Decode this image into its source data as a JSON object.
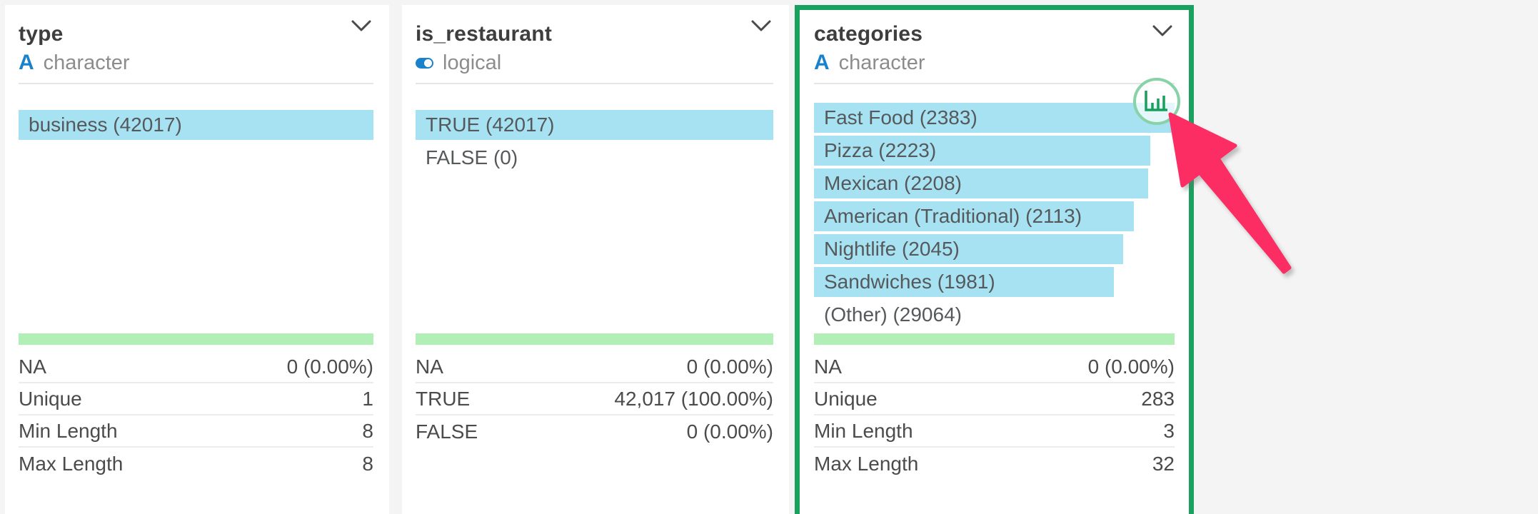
{
  "colors": {
    "bar_blue": "#A6E2F2",
    "summary_green": "#B2EFB6",
    "selected_green": "#1BA15F",
    "type_blue": "#1A82CB",
    "circle_border_green": "#87D2A6",
    "chart_icon_green": "#1A9E5C",
    "arrow_pink": "#FB2D62"
  },
  "cards": [
    {
      "title": "type",
      "type_kind": "character",
      "type_icon_glyph": "A",
      "selected": false,
      "bar_max": 42017,
      "bars": [
        {
          "label": "business (42017)",
          "value": 42017,
          "bar": true
        }
      ],
      "stats": [
        {
          "label": "NA",
          "value": "0 (0.00%)"
        },
        {
          "label": "Unique",
          "value": "1"
        },
        {
          "label": "Min Length",
          "value": "8"
        },
        {
          "label": "Max Length",
          "value": "8"
        }
      ]
    },
    {
      "title": "is_restaurant",
      "type_kind": "logical",
      "type_icon_glyph": "",
      "selected": false,
      "bar_max": 42017,
      "bars": [
        {
          "label": "TRUE (42017)",
          "value": 42017,
          "bar": true
        },
        {
          "label": "FALSE (0)",
          "value": 0,
          "bar": false
        }
      ],
      "stats": [
        {
          "label": "NA",
          "value": "0 (0.00%)"
        },
        {
          "label": "TRUE",
          "value": "42,017 (100.00%)"
        },
        {
          "label": "FALSE",
          "value": "0 (0.00%)"
        }
      ]
    },
    {
      "title": "categories",
      "type_kind": "character",
      "type_icon_glyph": "A",
      "selected": true,
      "bar_max": 2383,
      "bars": [
        {
          "label": "Fast Food (2383)",
          "value": 2383,
          "bar": true
        },
        {
          "label": "Pizza (2223)",
          "value": 2223,
          "bar": true
        },
        {
          "label": "Mexican (2208)",
          "value": 2208,
          "bar": true
        },
        {
          "label": "American (Traditional) (2113)",
          "value": 2113,
          "bar": true
        },
        {
          "label": "Nightlife (2045)",
          "value": 2045,
          "bar": true
        },
        {
          "label": "Sandwiches (1981)",
          "value": 1981,
          "bar": true
        },
        {
          "label": "(Other) (29064)",
          "value": 29064,
          "bar": false
        }
      ],
      "stats": [
        {
          "label": "NA",
          "value": "0 (0.00%)"
        },
        {
          "label": "Unique",
          "value": "283"
        },
        {
          "label": "Min Length",
          "value": "3"
        },
        {
          "label": "Max Length",
          "value": "32"
        }
      ]
    }
  ]
}
